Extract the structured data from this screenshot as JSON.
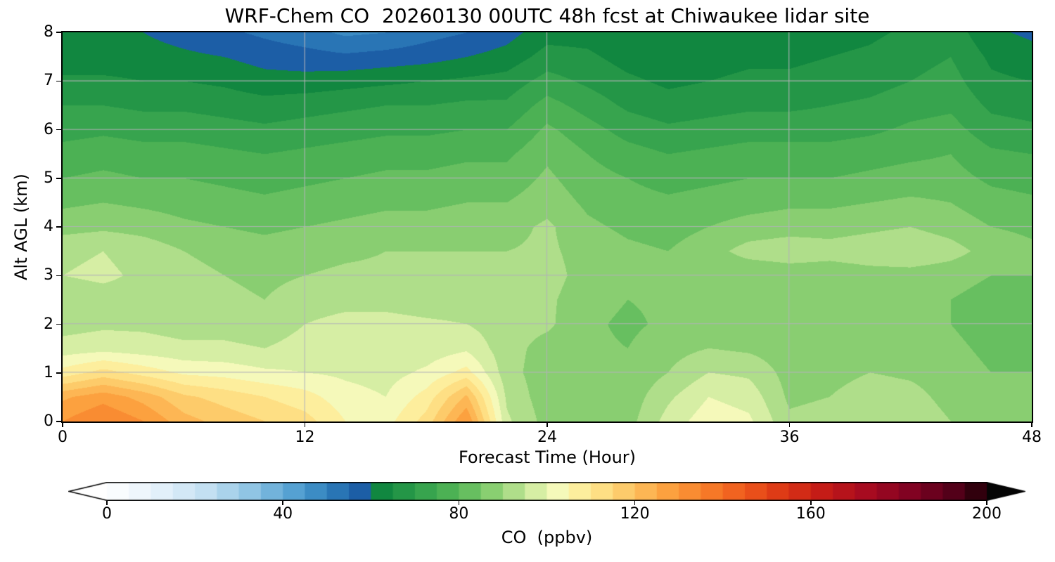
{
  "figure": {
    "background": "#ffffff"
  },
  "chart_data": {
    "type": "heatmap",
    "title": "WRF-Chem CO  20260130 00UTC 48h fcst at Chiwaukee lidar site",
    "xlabel": "Forecast Time (Hour)",
    "ylabel": "Alt AGL (km)",
    "xlim": [
      0,
      48
    ],
    "ylim": [
      0,
      8
    ],
    "x_ticks": [
      0,
      12,
      24,
      36,
      48
    ],
    "y_ticks": [
      0,
      1,
      2,
      3,
      4,
      5,
      6,
      7,
      8
    ],
    "grid": true,
    "grid_color": "#b2b2b8",
    "contour_interval": 5,
    "x": [
      0,
      2,
      4,
      6,
      8,
      10,
      12,
      14,
      16,
      18,
      20,
      22,
      24,
      26,
      28,
      30,
      32,
      34,
      36,
      38,
      40,
      42,
      44,
      46,
      48
    ],
    "y": [
      0,
      0.5,
      1,
      1.5,
      2,
      2.5,
      3,
      3.5,
      4,
      4.5,
      5,
      5.5,
      6,
      6.5,
      7,
      7.5,
      8
    ],
    "values_ppbv": [
      [
        130,
        135,
        130,
        122,
        118,
        115,
        112,
        105,
        103,
        112,
        130,
        96,
        88,
        87,
        88,
        97,
        103,
        101,
        91,
        92,
        95,
        94,
        90,
        88,
        87
      ],
      [
        124,
        128,
        123,
        116,
        113,
        110,
        107,
        102,
        100,
        107,
        121,
        94,
        87,
        86,
        87,
        94,
        100,
        98,
        89,
        90,
        93,
        92,
        88,
        86,
        86
      ],
      [
        107,
        112,
        108,
        104,
        103,
        101,
        100,
        99,
        98,
        101,
        107,
        92,
        87,
        86,
        86,
        90,
        95,
        94,
        88,
        88,
        90,
        89,
        87,
        85,
        85
      ],
      [
        97,
        98,
        97,
        96,
        96,
        95,
        97,
        99,
        98,
        97,
        99,
        92,
        88,
        86,
        85,
        88,
        90,
        89,
        87,
        86,
        88,
        87,
        86,
        84,
        84
      ],
      [
        93,
        94,
        94,
        93,
        93,
        92,
        95,
        97,
        97,
        96,
        95,
        92,
        91,
        86,
        84,
        86,
        87,
        86,
        86,
        85,
        86,
        86,
        85,
        83,
        83
      ],
      [
        92,
        93,
        93,
        92,
        91,
        90,
        92,
        93,
        93,
        92,
        92,
        91,
        91,
        87,
        85,
        86,
        86,
        85,
        86,
        85,
        86,
        86,
        85,
        83,
        84
      ],
      [
        95,
        96,
        94,
        92,
        90,
        89,
        90,
        91,
        91,
        91,
        91,
        91,
        92,
        88,
        86,
        86,
        86,
        86,
        87,
        87,
        88,
        88,
        87,
        85,
        85
      ],
      [
        94,
        95,
        93,
        90,
        88,
        87,
        88,
        89,
        90,
        90,
        90,
        90,
        91,
        88,
        86,
        85,
        88,
        92,
        93,
        92,
        93,
        94,
        92,
        88,
        86
      ],
      [
        88,
        89,
        88,
        86,
        85,
        84,
        85,
        86,
        87,
        87,
        88,
        88,
        91,
        86,
        84,
        83,
        85,
        87,
        88,
        88,
        89,
        90,
        88,
        85,
        84
      ],
      [
        84,
        85,
        84,
        83,
        82,
        81,
        82,
        83,
        84,
        84,
        85,
        85,
        88,
        84,
        82,
        81,
        82,
        83,
        84,
        84,
        85,
        86,
        85,
        82,
        81
      ],
      [
        80,
        81,
        80,
        80,
        79,
        78,
        79,
        80,
        81,
        81,
        82,
        82,
        86,
        82,
        80,
        78,
        79,
        80,
        80,
        80,
        81,
        82,
        82,
        79,
        78
      ],
      [
        77,
        78,
        77,
        77,
        76,
        75,
        76,
        77,
        78,
        78,
        79,
        79,
        84,
        80,
        77,
        75,
        76,
        77,
        77,
        77,
        78,
        79,
        80,
        76,
        75
      ],
      [
        73,
        74,
        73,
        73,
        72,
        71,
        72,
        73,
        74,
        74,
        75,
        75,
        81,
        77,
        73,
        71,
        72,
        73,
        73,
        73,
        74,
        76,
        77,
        72,
        71
      ],
      [
        70,
        70,
        69,
        69,
        68,
        67,
        68,
        69,
        70,
        70,
        71,
        71,
        77,
        73,
        69,
        67,
        68,
        69,
        69,
        70,
        71,
        73,
        74,
        69,
        68
      ],
      [
        66,
        66,
        65,
        65,
        64,
        62,
        62,
        63,
        64,
        65,
        66,
        67,
        72,
        69,
        66,
        64,
        65,
        66,
        66,
        67,
        68,
        70,
        72,
        66,
        65
      ],
      [
        62,
        62,
        62,
        61,
        60,
        58,
        57,
        56,
        57,
        58,
        60,
        62,
        67,
        66,
        63,
        62,
        63,
        64,
        64,
        65,
        66,
        68,
        70,
        64,
        62
      ],
      [
        61,
        61,
        60,
        58,
        56,
        54,
        52,
        49,
        50,
        53,
        55,
        58,
        63,
        63,
        61,
        60,
        61,
        62,
        62,
        63,
        64,
        66,
        68,
        61,
        59
      ]
    ],
    "colorbar": {
      "label": "CO  (ppbv)",
      "ticks": [
        0,
        40,
        80,
        120,
        160,
        200
      ],
      "range": [
        0,
        200
      ],
      "extend": "both",
      "under_color": "#ffffff",
      "over_color": "#050505",
      "stops": [
        [
          0,
          "#ffffff"
        ],
        [
          12,
          "#e4f1fa"
        ],
        [
          22,
          "#c5e1f3"
        ],
        [
          32,
          "#93c7e5"
        ],
        [
          42,
          "#57a3d3"
        ],
        [
          50,
          "#2f81bd"
        ],
        [
          58,
          "#1b5ca4"
        ],
        [
          60,
          "#087f3c"
        ],
        [
          70,
          "#2d9e4b"
        ],
        [
          80,
          "#56b757"
        ],
        [
          87,
          "#85cd6f"
        ],
        [
          93,
          "#b3df8c"
        ],
        [
          98,
          "#daf0a7"
        ],
        [
          102,
          "#f4fabd"
        ],
        [
          107,
          "#fdf0a0"
        ],
        [
          113,
          "#fedd81"
        ],
        [
          120,
          "#fdc15e"
        ],
        [
          128,
          "#fc9f3d"
        ],
        [
          136,
          "#f77e29"
        ],
        [
          145,
          "#ee591c"
        ],
        [
          154,
          "#db3515"
        ],
        [
          163,
          "#c41a17"
        ],
        [
          173,
          "#a50a20"
        ],
        [
          183,
          "#7f0222"
        ],
        [
          192,
          "#56001a"
        ],
        [
          200,
          "#200007"
        ]
      ]
    }
  }
}
